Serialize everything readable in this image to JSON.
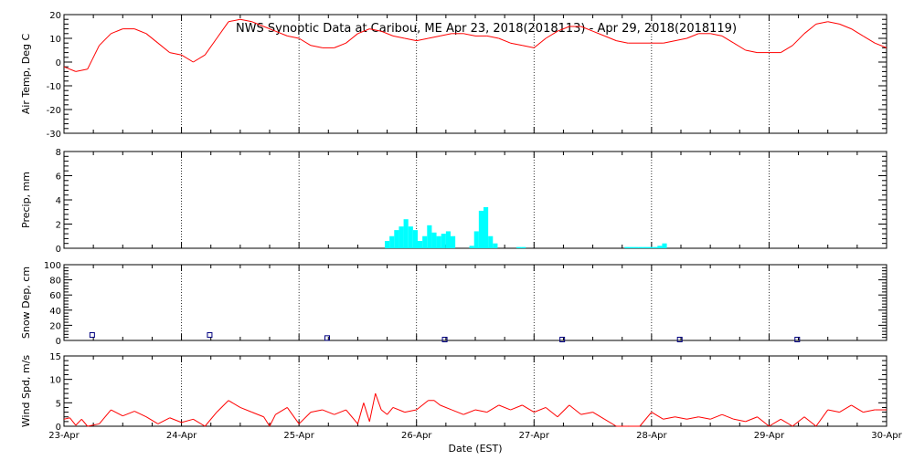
{
  "chart_data": [
    {
      "type": "line",
      "title": "NWS Synoptic Data at Caribou, ME   Apr 23, 2018(2018113) - Apr 29, 2018(2018119)",
      "ylabel": "Air Temp, Deg C",
      "ylim": [
        -30,
        20
      ],
      "yticks": [
        -30,
        -20,
        -10,
        0,
        10,
        20
      ],
      "color": "#ff0000",
      "x": [
        0,
        0.1,
        0.2,
        0.3,
        0.4,
        0.5,
        0.6,
        0.7,
        0.8,
        0.9,
        1.0,
        1.1,
        1.2,
        1.3,
        1.4,
        1.5,
        1.6,
        1.7,
        1.8,
        1.9,
        2.0,
        2.1,
        2.2,
        2.3,
        2.4,
        2.5,
        2.6,
        2.7,
        2.8,
        2.9,
        3.0,
        3.1,
        3.2,
        3.3,
        3.4,
        3.5,
        3.6,
        3.7,
        3.8,
        3.9,
        4.0,
        4.1,
        4.2,
        4.3,
        4.4,
        4.5,
        4.6,
        4.7,
        4.8,
        4.9,
        5.0,
        5.1,
        5.2,
        5.3,
        5.4,
        5.5,
        5.6,
        5.7,
        5.8,
        5.9,
        6.0,
        6.1,
        6.2,
        6.3,
        6.4,
        6.5,
        6.6,
        6.7,
        6.8,
        6.9,
        7.0
      ],
      "values": [
        -2,
        -4,
        -3,
        7,
        12,
        14,
        14,
        12,
        8,
        4,
        3,
        0,
        3,
        10,
        17,
        18,
        17,
        15,
        13,
        11,
        10,
        7,
        6,
        6,
        8,
        12,
        14,
        13,
        11,
        10,
        9,
        10,
        11,
        12,
        12,
        11,
        11,
        10,
        8,
        7,
        6,
        10,
        13,
        15,
        15,
        13,
        11,
        9,
        8,
        8,
        8,
        8,
        9,
        10,
        12,
        12,
        11,
        8,
        5,
        4,
        4,
        4,
        7,
        12,
        16,
        17,
        16,
        14,
        11,
        8,
        6
      ]
    },
    {
      "type": "bar",
      "ylabel": "Precip, mm",
      "ylim": [
        0,
        8
      ],
      "yticks": [
        0,
        2,
        4,
        6,
        8
      ],
      "color": "#00ffff",
      "x": [
        2.75,
        2.79,
        2.83,
        2.87,
        2.91,
        2.95,
        2.99,
        3.03,
        3.07,
        3.11,
        3.15,
        3.19,
        3.23,
        3.27,
        3.31,
        3.47,
        3.51,
        3.55,
        3.59,
        3.63,
        3.67,
        3.87,
        3.91,
        4.79,
        4.83,
        4.87,
        4.91,
        4.95,
        4.99,
        5.03,
        5.07,
        5.11
      ],
      "values": [
        0.6,
        1.0,
        1.5,
        1.8,
        2.4,
        1.8,
        1.5,
        0.6,
        1.0,
        1.9,
        1.3,
        1.0,
        1.2,
        1.4,
        1.0,
        0.2,
        1.4,
        3.1,
        3.4,
        1.0,
        0.4,
        0.1,
        0.1,
        0.1,
        0.1,
        0.1,
        0.1,
        0.1,
        0.1,
        0.1,
        0.2,
        0.4
      ]
    },
    {
      "type": "scatter",
      "ylabel": "Snow Dep, cm",
      "ylim": [
        0,
        100
      ],
      "yticks": [
        0,
        20,
        40,
        60,
        80,
        100
      ],
      "color": "#000080",
      "x": [
        0.24,
        1.24,
        2.24,
        3.24,
        4.24,
        5.24,
        6.24
      ],
      "values": [
        6,
        6,
        2,
        0,
        0,
        0,
        0
      ]
    },
    {
      "type": "line",
      "ylabel": "Wind Spd, m/s",
      "xlabel": "Date (EST)",
      "ylim": [
        0,
        15
      ],
      "yticks": [
        0,
        5,
        10,
        15
      ],
      "color": "#ff0000",
      "categories": [
        "23-Apr",
        "24-Apr",
        "25-Apr",
        "26-Apr",
        "27-Apr",
        "28-Apr",
        "29-Apr",
        "30-Apr"
      ],
      "xlim": [
        0,
        7
      ],
      "x": [
        0,
        0.05,
        0.1,
        0.15,
        0.2,
        0.3,
        0.4,
        0.5,
        0.6,
        0.7,
        0.8,
        0.9,
        1.0,
        1.1,
        1.2,
        1.3,
        1.4,
        1.5,
        1.6,
        1.7,
        1.75,
        1.8,
        1.9,
        2.0,
        2.1,
        2.2,
        2.3,
        2.4,
        2.5,
        2.55,
        2.6,
        2.65,
        2.7,
        2.75,
        2.8,
        2.9,
        3.0,
        3.1,
        3.15,
        3.2,
        3.3,
        3.4,
        3.5,
        3.6,
        3.7,
        3.8,
        3.9,
        4.0,
        4.1,
        4.2,
        4.3,
        4.4,
        4.5,
        4.6,
        4.7,
        4.8,
        4.9,
        5.0,
        5.1,
        5.2,
        5.3,
        5.4,
        5.5,
        5.6,
        5.7,
        5.8,
        5.9,
        6.0,
        6.1,
        6.2,
        6.3,
        6.4,
        6.5,
        6.6,
        6.7,
        6.8,
        6.9,
        7.0
      ],
      "values": [
        1.5,
        1.8,
        0.2,
        1.5,
        0,
        0.5,
        3.5,
        2.2,
        3.2,
        2.0,
        0.5,
        1.8,
        0.8,
        1.5,
        0,
        3.0,
        5.5,
        4.0,
        3.0,
        2.0,
        0,
        2.5,
        4.0,
        0.5,
        3.0,
        3.5,
        2.5,
        3.5,
        0.5,
        5.0,
        1.0,
        7.0,
        3.5,
        2.5,
        4.0,
        3.0,
        3.5,
        5.5,
        5.5,
        4.5,
        3.5,
        2.5,
        3.5,
        3.0,
        4.5,
        3.5,
        4.5,
        3.0,
        4.0,
        2.0,
        4.5,
        2.5,
        3.0,
        1.5,
        0,
        0,
        0,
        3.0,
        1.5,
        2.0,
        1.5,
        2.0,
        1.5,
        2.5,
        1.5,
        1.0,
        2.0,
        0,
        1.5,
        0,
        2.0,
        0,
        3.5,
        3.0,
        4.5,
        3.0,
        3.5,
        3.5
      ]
    }
  ]
}
